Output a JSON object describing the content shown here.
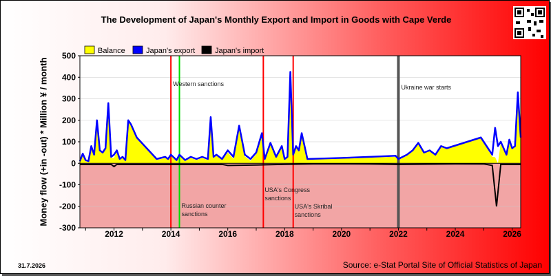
{
  "title": "The Development of Japan's Monthly Export and Import in Goods with Cape Verde",
  "footer": {
    "date": "31.7.2026",
    "source": "Source: e-Stat Portal Site of Official Statistics of Japan"
  },
  "colors": {
    "balance": "#ffff00",
    "export": "#0000ff",
    "import": "#000000",
    "sanction_red": "#ff0000",
    "sanction_green": "#00dd00",
    "war_gray": "#555555"
  },
  "chart_data": {
    "type": "area",
    "title": "The Development of Japan's Monthly Export and Import in Goods with Cape Verde",
    "ylabel": "Money flow (+in -out) * Million ¥ / month",
    "xlabel": "",
    "xlim": [
      2010.8,
      2026.3
    ],
    "ylim": [
      -300,
      500
    ],
    "yticks": [
      500,
      400,
      300,
      200,
      100,
      0,
      -100,
      -200,
      -300
    ],
    "xticks": [
      2012,
      2014,
      2016,
      2018,
      2020,
      2022,
      2024,
      2026
    ],
    "grid": true,
    "legend": {
      "position": "top-left",
      "entries": [
        "Balance",
        "Japan's export",
        "Japan's import"
      ]
    },
    "series": [
      {
        "name": "Japan's export",
        "x": [
          2010.8,
          2010.9,
          2011.0,
          2011.1,
          2011.2,
          2011.3,
          2011.4,
          2011.5,
          2011.6,
          2011.7,
          2011.8,
          2011.9,
          2012.0,
          2012.1,
          2012.2,
          2012.3,
          2012.4,
          2012.5,
          2012.6,
          2012.7,
          2012.8,
          2013.5,
          2013.8,
          2013.9,
          2014.0,
          2014.2,
          2014.3,
          2014.5,
          2014.7,
          2014.9,
          2015.1,
          2015.3,
          2015.4,
          2015.5,
          2015.6,
          2015.8,
          2016.0,
          2016.2,
          2016.4,
          2016.6,
          2016.8,
          2017.0,
          2017.2,
          2017.3,
          2017.5,
          2017.7,
          2017.9,
          2018.0,
          2018.1,
          2018.2,
          2018.3,
          2018.4,
          2018.5,
          2018.6,
          2018.8,
          2020.0,
          2021.0,
          2021.9,
          2022.0,
          2022.3,
          2022.5,
          2022.7,
          2022.9,
          2023.1,
          2023.3,
          2023.5,
          2023.7,
          2024.9,
          2025.1,
          2025.3,
          2025.4,
          2025.5,
          2025.6,
          2025.8,
          2025.9,
          2026.0,
          2026.1,
          2026.2,
          2026.3
        ],
        "values": [
          10,
          45,
          15,
          10,
          80,
          40,
          200,
          60,
          50,
          70,
          280,
          30,
          40,
          60,
          20,
          30,
          15,
          200,
          180,
          150,
          120,
          20,
          30,
          20,
          40,
          15,
          40,
          15,
          30,
          20,
          30,
          20,
          215,
          30,
          40,
          20,
          60,
          30,
          175,
          40,
          20,
          50,
          140,
          20,
          95,
          30,
          80,
          20,
          30,
          425,
          40,
          80,
          60,
          140,
          20,
          25,
          30,
          35,
          20,
          40,
          60,
          95,
          50,
          60,
          40,
          80,
          70,
          120,
          80,
          40,
          165,
          80,
          100,
          40,
          110,
          70,
          80,
          330,
          120
        ]
      },
      {
        "name": "Japan's import",
        "x": [
          2010.8,
          2011.9,
          2012.0,
          2012.1,
          2013.0,
          2015.8,
          2016.0,
          2017.0,
          2018.0,
          2019.0,
          2021.0,
          2022.0,
          2024.0,
          2025.0,
          2025.3,
          2025.45,
          2025.6,
          2026.0,
          2026.3
        ],
        "values": [
          -5,
          -5,
          -15,
          -5,
          -5,
          -5,
          -10,
          -8,
          -5,
          -3,
          -3,
          -5,
          -3,
          -3,
          -10,
          -200,
          -5,
          -5,
          -5
        ]
      }
    ],
    "annotations": [
      {
        "label": "Western sanctions",
        "x": 2014.0,
        "color": "red"
      },
      {
        "label": "",
        "x": 2014.3,
        "color": "green"
      },
      {
        "label": "Russian counter sanctions",
        "x": 2014.3,
        "color": "green"
      },
      {
        "label": "USA's Congress sanctions",
        "x": 2017.25,
        "color": "red"
      },
      {
        "label": "USA's Skribal sanctions",
        "x": 2018.3,
        "color": "red"
      },
      {
        "label": "Ukraine war starts",
        "x": 2022.0,
        "color": "gray"
      }
    ]
  }
}
